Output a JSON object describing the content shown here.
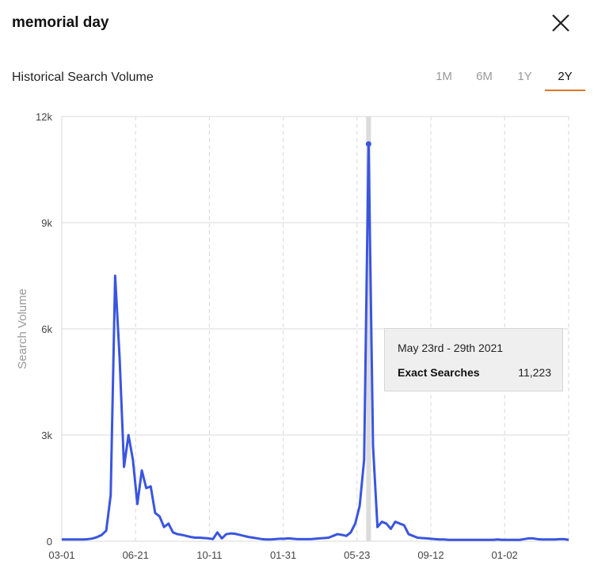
{
  "header": {
    "title": "memorial day",
    "close_icon": "close-icon"
  },
  "section": {
    "subtitle": "Historical Search Volume"
  },
  "tabs": [
    {
      "label": "1M",
      "active": false
    },
    {
      "label": "6M",
      "active": false
    },
    {
      "label": "1Y",
      "active": false
    },
    {
      "label": "2Y",
      "active": true
    }
  ],
  "colors": {
    "line": "#3a55e0",
    "tab_underline": "#e0782a",
    "grid": "#d9d9d9"
  },
  "tooltip": {
    "date": "May 23rd - 29th 2021",
    "label": "Exact Searches",
    "value": "11,223"
  },
  "chart_data": {
    "type": "line",
    "xlabel": "",
    "ylabel": "Search Volume",
    "ylim": [
      0,
      12000
    ],
    "y_ticks": [
      0,
      3000,
      6000,
      9000,
      12000
    ],
    "y_tick_labels": [
      "0",
      "3k",
      "6k",
      "9k",
      "12k"
    ],
    "x_tick_labels": [
      "03-01",
      "06-21",
      "10-11",
      "01-31",
      "05-23",
      "09-12",
      "01-02"
    ],
    "grid": true,
    "series": [
      {
        "values": [
          50,
          50,
          50,
          50,
          50,
          50,
          60,
          80,
          120,
          180,
          300,
          1300,
          7500,
          5200,
          2100,
          3000,
          2300,
          1050,
          2000,
          1500,
          1550,
          800,
          700,
          400,
          500,
          250,
          200,
          180,
          150,
          120,
          100,
          100,
          90,
          80,
          60,
          250,
          80,
          200,
          220,
          210,
          180,
          150,
          120,
          100,
          80,
          60,
          50,
          50,
          60,
          70,
          70,
          80,
          70,
          60,
          60,
          60,
          60,
          70,
          80,
          90,
          100,
          150,
          200,
          180,
          150,
          250,
          500,
          1000,
          2300,
          11223,
          2700,
          400,
          550,
          500,
          350,
          550,
          500,
          450,
          200,
          150,
          100,
          90,
          80,
          70,
          60,
          50,
          50,
          40,
          40,
          40,
          40,
          40,
          40,
          40,
          40,
          40,
          40,
          40,
          50,
          40,
          40,
          40,
          40,
          40,
          60,
          80,
          80,
          60,
          50,
          50,
          50,
          50,
          60,
          60,
          40
        ]
      }
    ],
    "highlight_index": 69
  }
}
